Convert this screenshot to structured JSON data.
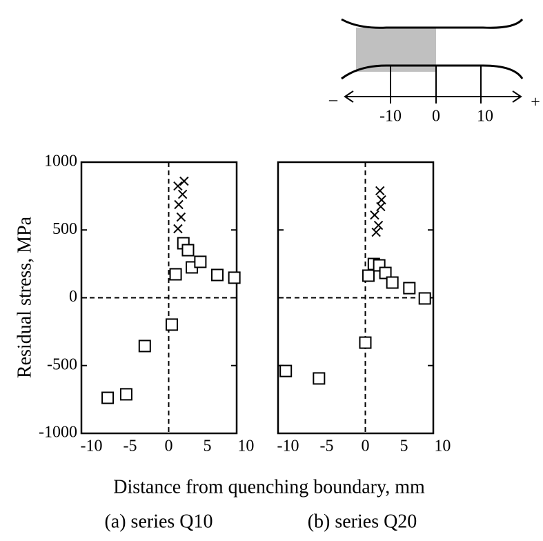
{
  "diagram": {
    "minus": "–",
    "plus": "+",
    "labels": [
      "-10",
      "0",
      "10"
    ]
  },
  "y_label": "Residual stress, MPa",
  "x_label": "Distance from quenching boundary, mm",
  "chart_data": [
    {
      "type": "scatter",
      "caption": "(a)  series Q10",
      "xlim": [
        -11.3,
        8.8
      ],
      "ylim": [
        -1000,
        1000
      ],
      "xticks": [
        -10,
        -5,
        0,
        5,
        10
      ],
      "yticks": [
        -1000,
        -500,
        0,
        500,
        1000
      ],
      "show_ytick_labels": true,
      "zero_lines": true,
      "series": [
        {
          "marker": "square",
          "color": "#000000",
          "x": [
            -7.9,
            -5.5,
            -3.1,
            0.4,
            0.9,
            1.9,
            2.5,
            3.0,
            4.1,
            6.3,
            8.5
          ],
          "values": [
            -738,
            -712,
            -356,
            -198,
            173,
            402,
            351,
            224,
            265,
            168,
            148
          ]
        },
        {
          "marker": "cross",
          "color": "#000000",
          "x": [
            1.2,
            2.0,
            1.8,
            1.3,
            1.6,
            1.2
          ],
          "values": [
            824,
            860,
            763,
            687,
            595,
            509
          ]
        }
      ]
    },
    {
      "type": "scatter",
      "caption": "(b)  series Q20",
      "xlim": [
        -11.3,
        8.8
      ],
      "ylim": [
        -1000,
        1000
      ],
      "xticks": [
        -10,
        -5,
        0,
        5,
        10
      ],
      "yticks": [
        -1000,
        -500,
        0,
        500,
        1000
      ],
      "show_ytick_labels": false,
      "zero_lines": true,
      "series": [
        {
          "marker": "square",
          "color": "#000000",
          "x": [
            -10.3,
            -6.0,
            0.0,
            0.4,
            1.1,
            1.8,
            2.6,
            3.5,
            5.7,
            7.7
          ],
          "values": [
            -540,
            -595,
            -331,
            163,
            249,
            239,
            183,
            112,
            71,
            -5
          ]
        },
        {
          "marker": "cross",
          "color": "#000000",
          "x": [
            1.9,
            2.1,
            2.0,
            1.2,
            1.7,
            1.4
          ],
          "values": [
            789,
            722,
            672,
            610,
            534,
            483
          ]
        }
      ]
    }
  ]
}
